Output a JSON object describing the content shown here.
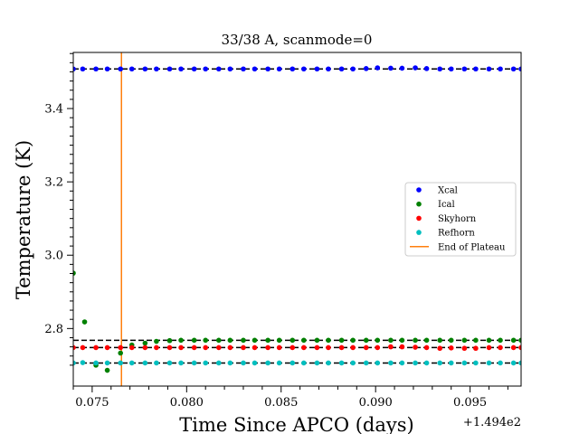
{
  "chart_data": {
    "type": "scatter",
    "title": "33/38 A, scanmode=0",
    "xlabel": "Time Since APCO (days)",
    "ylabel": "Temperature (K)",
    "x_offset_label": "+1.494e2",
    "xlim": [
      0.074,
      0.0977
    ],
    "ylim": [
      2.643,
      3.553
    ],
    "x_ticks": [
      0.075,
      0.08,
      0.085,
      0.09,
      0.095
    ],
    "x_tick_labels": [
      "0.075",
      "0.080",
      "0.085",
      "0.090",
      "0.095"
    ],
    "y_ticks": [
      2.8,
      3.0,
      3.2,
      3.4
    ],
    "y_tick_labels": [
      "2.8",
      "3.0",
      "3.2",
      "3.4"
    ],
    "grid": false,
    "legend_position": "center-right",
    "series": [
      {
        "name": "Xcal",
        "color": "#0000ff",
        "level": 3.508,
        "x": [
          0.074,
          0.0745,
          0.0752,
          0.0758,
          0.0765,
          0.0771,
          0.0778,
          0.0784,
          0.0791,
          0.0797,
          0.0804,
          0.081,
          0.0817,
          0.0823,
          0.083,
          0.0836,
          0.0843,
          0.0849,
          0.0856,
          0.0862,
          0.0869,
          0.0875,
          0.0882,
          0.0888,
          0.0895,
          0.0901,
          0.0908,
          0.0914,
          0.0921,
          0.0927,
          0.0934,
          0.094,
          0.0947,
          0.0953,
          0.096,
          0.0966,
          0.0973,
          0.0977
        ],
        "y": [
          3.508,
          3.508,
          3.508,
          3.508,
          3.508,
          3.508,
          3.508,
          3.508,
          3.508,
          3.508,
          3.508,
          3.508,
          3.508,
          3.508,
          3.508,
          3.508,
          3.508,
          3.508,
          3.508,
          3.508,
          3.508,
          3.508,
          3.508,
          3.508,
          3.509,
          3.511,
          3.51,
          3.51,
          3.511,
          3.509,
          3.508,
          3.508,
          3.508,
          3.508,
          3.508,
          3.508,
          3.508,
          3.508
        ]
      },
      {
        "name": "Ical",
        "color": "#008000",
        "level": 2.768,
        "x": [
          0.074,
          0.0746,
          0.0752,
          0.0758,
          0.0765,
          0.0771,
          0.0778,
          0.0784,
          0.0791,
          0.0797,
          0.0804,
          0.081,
          0.0817,
          0.0823,
          0.083,
          0.0836,
          0.0843,
          0.0849,
          0.0856,
          0.0862,
          0.0869,
          0.0875,
          0.0882,
          0.0888,
          0.0895,
          0.0901,
          0.0908,
          0.0914,
          0.0921,
          0.0927,
          0.0934,
          0.094,
          0.0947,
          0.0953,
          0.096,
          0.0966,
          0.0973,
          0.0977
        ],
        "y": [
          2.951,
          2.818,
          2.7,
          2.686,
          2.733,
          2.755,
          2.76,
          2.765,
          2.767,
          2.768,
          2.768,
          2.768,
          2.768,
          2.768,
          2.768,
          2.768,
          2.768,
          2.768,
          2.768,
          2.768,
          2.768,
          2.768,
          2.768,
          2.768,
          2.768,
          2.768,
          2.768,
          2.768,
          2.768,
          2.768,
          2.768,
          2.768,
          2.768,
          2.768,
          2.768,
          2.768,
          2.768,
          2.768
        ]
      },
      {
        "name": "Skyhorn",
        "color": "#ff0000",
        "level": 2.748,
        "x": [
          0.074,
          0.0745,
          0.0752,
          0.0758,
          0.0765,
          0.0771,
          0.0778,
          0.0784,
          0.0791,
          0.0797,
          0.0804,
          0.081,
          0.0817,
          0.0823,
          0.083,
          0.0836,
          0.0843,
          0.0849,
          0.0856,
          0.0862,
          0.0869,
          0.0875,
          0.0882,
          0.0888,
          0.0895,
          0.0901,
          0.0908,
          0.0914,
          0.0921,
          0.0927,
          0.0934,
          0.094,
          0.0947,
          0.0953,
          0.096,
          0.0966,
          0.0973,
          0.0977
        ],
        "y": [
          2.748,
          2.748,
          2.748,
          2.748,
          2.748,
          2.748,
          2.748,
          2.748,
          2.748,
          2.748,
          2.748,
          2.748,
          2.748,
          2.748,
          2.748,
          2.748,
          2.748,
          2.748,
          2.748,
          2.748,
          2.748,
          2.748,
          2.748,
          2.748,
          2.748,
          2.748,
          2.75,
          2.75,
          2.749,
          2.748,
          2.746,
          2.747,
          2.746,
          2.746,
          2.748,
          2.748,
          2.748,
          2.748
        ]
      },
      {
        "name": "Refhorn",
        "color": "#00bfbf",
        "level": 2.706,
        "x": [
          0.074,
          0.0745,
          0.0752,
          0.0758,
          0.0765,
          0.0771,
          0.0778,
          0.0784,
          0.0791,
          0.0797,
          0.0804,
          0.081,
          0.0817,
          0.0823,
          0.083,
          0.0836,
          0.0843,
          0.0849,
          0.0856,
          0.0862,
          0.0869,
          0.0875,
          0.0882,
          0.0888,
          0.0895,
          0.0901,
          0.0908,
          0.0914,
          0.0921,
          0.0927,
          0.0934,
          0.094,
          0.0947,
          0.0953,
          0.096,
          0.0966,
          0.0973,
          0.0977
        ],
        "y": [
          2.706,
          2.707,
          2.706,
          2.706,
          2.706,
          2.706,
          2.706,
          2.706,
          2.706,
          2.706,
          2.706,
          2.706,
          2.706,
          2.706,
          2.706,
          2.706,
          2.706,
          2.706,
          2.706,
          2.706,
          2.706,
          2.706,
          2.706,
          2.706,
          2.706,
          2.706,
          2.706,
          2.706,
          2.706,
          2.706,
          2.706,
          2.706,
          2.706,
          2.706,
          2.706,
          2.706,
          2.706,
          2.706
        ]
      }
    ],
    "end_of_plateau": {
      "name": "End of Plateau",
      "color": "#ff7f0e",
      "x": 0.07655
    }
  }
}
